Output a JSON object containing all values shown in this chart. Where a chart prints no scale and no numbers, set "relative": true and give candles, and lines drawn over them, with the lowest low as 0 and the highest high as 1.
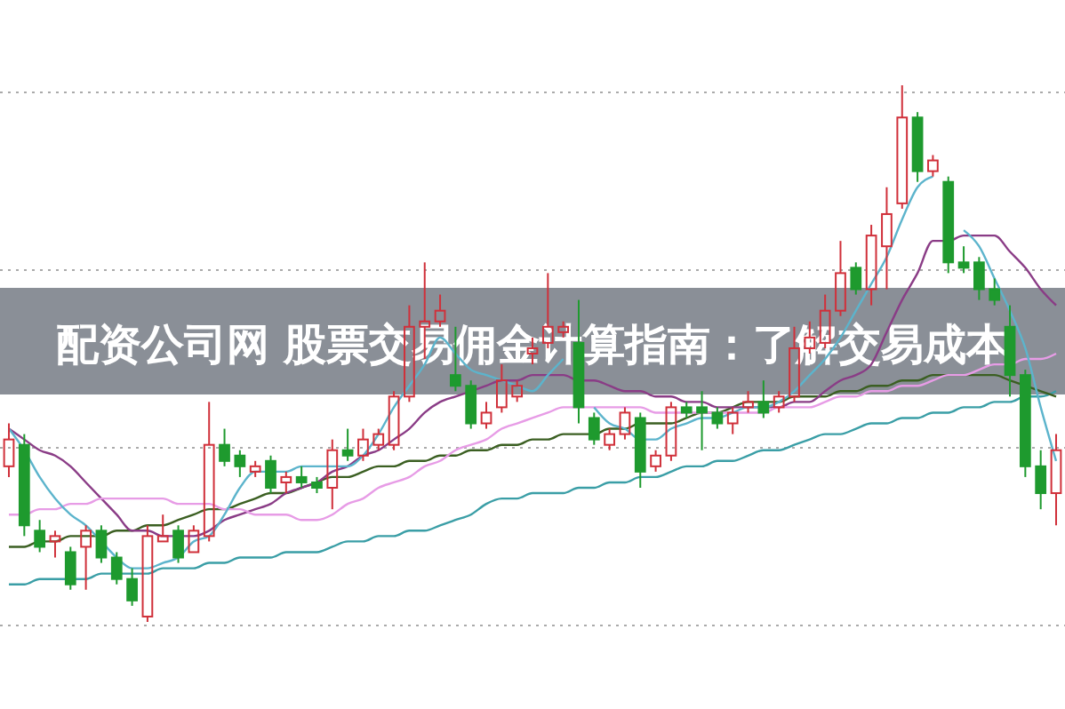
{
  "chart_data": {
    "type": "candlestick",
    "title": "配资公司网 股票交易佣金计算指南：了解交易成本",
    "relative": true,
    "grid": "y",
    "categories": [
      null,
      null,
      null,
      null,
      null,
      null,
      null,
      null,
      null,
      null,
      null,
      null,
      null,
      null,
      null,
      null,
      null,
      null,
      null,
      null,
      null,
      null,
      null,
      null,
      null,
      null,
      null,
      null,
      null,
      null,
      null,
      null,
      null,
      null,
      null,
      null,
      null,
      null,
      null,
      null,
      null,
      null,
      null,
      null,
      null,
      null,
      null,
      null,
      null,
      null,
      null,
      null,
      null,
      null,
      null,
      null,
      null,
      null,
      null,
      null,
      null,
      null,
      null,
      null,
      null,
      null,
      null,
      null,
      null
    ],
    "ohlc": [
      [
        0.29,
        0.37,
        0.27,
        0.34
      ],
      [
        0.33,
        0.35,
        0.16,
        0.18
      ],
      [
        0.17,
        0.19,
        0.13,
        0.14
      ],
      [
        0.15,
        0.17,
        0.12,
        0.16
      ],
      [
        0.13,
        0.14,
        0.06,
        0.07
      ],
      [
        0.14,
        0.18,
        0.06,
        0.17
      ],
      [
        0.17,
        0.18,
        0.11,
        0.12
      ],
      [
        0.12,
        0.13,
        0.07,
        0.08
      ],
      [
        0.08,
        0.1,
        0.03,
        0.04
      ],
      [
        0.01,
        0.18,
        0,
        0.16
      ],
      [
        0.15,
        0.2,
        0.15,
        0.16
      ],
      [
        0.17,
        0.18,
        0.11,
        0.12
      ],
      [
        0.13,
        0.18,
        0.13,
        0.17
      ],
      [
        0.16,
        0.41,
        0.15,
        0.33
      ],
      [
        0.33,
        0.36,
        0.29,
        0.3
      ],
      [
        0.31,
        0.32,
        0.27,
        0.29
      ],
      [
        0.28,
        0.3,
        0.27,
        0.29
      ],
      [
        0.3,
        0.31,
        0.24,
        0.25
      ],
      [
        0.26,
        0.28,
        0.24,
        0.27
      ],
      [
        0.27,
        0.29,
        0.25,
        0.26
      ],
      [
        0.26,
        0.27,
        0.24,
        0.25
      ],
      [
        0.25,
        0.34,
        0.21,
        0.32
      ],
      [
        0.32,
        0.36,
        0.3,
        0.31
      ],
      [
        0.31,
        0.36,
        0.3,
        0.34
      ],
      [
        0.33,
        0.36,
        0.32,
        0.35
      ],
      [
        0.33,
        0.43,
        0.32,
        0.42
      ],
      [
        0.42,
        0.59,
        0.41,
        0.55
      ],
      [
        0.55,
        0.67,
        0.49,
        0.56
      ],
      [
        0.56,
        0.61,
        0.55,
        0.58
      ],
      [
        0.46,
        0.55,
        0.43,
        0.44
      ],
      [
        0.44,
        0.45,
        0.36,
        0.37
      ],
      [
        0.37,
        0.41,
        0.36,
        0.39
      ],
      [
        0.4,
        0.48,
        0.39,
        0.45
      ],
      [
        0.42,
        0.45,
        0.41,
        0.44
      ],
      [
        0.5,
        0.53,
        0.48,
        0.51
      ],
      [
        0.52,
        0.65,
        0.51,
        0.55
      ],
      [
        0.54,
        0.56,
        0.53,
        0.55
      ],
      [
        0.52,
        0.6,
        0.37,
        0.4
      ],
      [
        0.38,
        0.39,
        0.33,
        0.34
      ],
      [
        0.33,
        0.36,
        0.32,
        0.35
      ],
      [
        0.35,
        0.4,
        0.34,
        0.39
      ],
      [
        0.38,
        0.39,
        0.25,
        0.28
      ],
      [
        0.29,
        0.32,
        0.28,
        0.31
      ],
      [
        0.31,
        0.41,
        0.3,
        0.4
      ],
      [
        0.4,
        0.41,
        0.38,
        0.39
      ],
      [
        0.4,
        0.43,
        0.32,
        0.39
      ],
      [
        0.39,
        0.4,
        0.36,
        0.37
      ],
      [
        0.37,
        0.4,
        0.35,
        0.39
      ],
      [
        0.4,
        0.43,
        0.39,
        0.41
      ],
      [
        0.41,
        0.45,
        0.38,
        0.39
      ],
      [
        0.4,
        0.43,
        0.39,
        0.42
      ],
      [
        0.42,
        0.55,
        0.41,
        0.51
      ],
      [
        0.51,
        0.56,
        0.5,
        0.53
      ],
      [
        0.52,
        0.61,
        0.51,
        0.58
      ],
      [
        0.58,
        0.71,
        0.57,
        0.65
      ],
      [
        0.66,
        0.67,
        0.61,
        0.62
      ],
      [
        0.62,
        0.74,
        0.59,
        0.72
      ],
      [
        0.7,
        0.81,
        0.62,
        0.76
      ],
      [
        0.78,
        1,
        0.77,
        0.94
      ],
      [
        0.94,
        0.95,
        0.82,
        0.84
      ],
      [
        0.84,
        0.87,
        0.83,
        0.86
      ],
      [
        0.82,
        0.83,
        0.65,
        0.67
      ],
      [
        0.67,
        0.7,
        0.65,
        0.66
      ],
      [
        0.67,
        0.68,
        0.6,
        0.62
      ],
      [
        0.62,
        0.64,
        0.59,
        0.6
      ],
      [
        0.55,
        0.59,
        0.42,
        0.46
      ],
      [
        0.46,
        0.47,
        0.27,
        0.29
      ],
      [
        0.29,
        0.32,
        0.21,
        0.24
      ],
      [
        0.24,
        0.35,
        0.18,
        0.32
      ]
    ],
    "colors": [
      "#d0303a",
      "#1e9a2e",
      "#1e9a2e",
      "#d0303a",
      "#1e9a2e",
      "#d0303a",
      "#1e9a2e",
      "#1e9a2e",
      "#1e9a2e",
      "#d0303a",
      "#d0303a",
      "#1e9a2e",
      "#d0303a",
      "#d0303a",
      "#1e9a2e",
      "#1e9a2e",
      "#d0303a",
      "#1e9a2e",
      "#d0303a",
      "#1e9a2e",
      "#1e9a2e",
      "#d0303a",
      "#1e9a2e",
      "#d0303a",
      "#d0303a",
      "#d0303a",
      "#d0303a",
      "#d0303a",
      "#d0303a",
      "#1e9a2e",
      "#1e9a2e",
      "#d0303a",
      "#d0303a",
      "#d0303a",
      "#d0303a",
      "#d0303a",
      "#d0303a",
      "#1e9a2e",
      "#1e9a2e",
      "#d0303a",
      "#d0303a",
      "#1e9a2e",
      "#d0303a",
      "#d0303a",
      "#1e9a2e",
      "#1e9a2e",
      "#1e9a2e",
      "#d0303a",
      "#d0303a",
      "#1e9a2e",
      "#d0303a",
      "#d0303a",
      "#d0303a",
      "#d0303a",
      "#d0303a",
      "#1e9a2e",
      "#d0303a",
      "#d0303a",
      "#d0303a",
      "#1e9a2e",
      "#d0303a",
      "#1e9a2e",
      "#1e9a2e",
      "#1e9a2e",
      "#1e9a2e",
      "#1e9a2e",
      "#1e9a2e",
      "#1e9a2e",
      "#d0303a"
    ],
    "series": [
      {
        "type": "line",
        "color": "#3a9ea6",
        "values": [
          0.07,
          0.07,
          0.08,
          0.08,
          0.08,
          0.08,
          0.09,
          0.09,
          0.09,
          0.09,
          0.1,
          0.1,
          0.1,
          0.11,
          0.11,
          0.12,
          0.12,
          0.12,
          0.13,
          0.13,
          0.13,
          0.14,
          0.15,
          0.15,
          0.16,
          0.16,
          0.17,
          0.17,
          0.18,
          0.19,
          0.2,
          0.22,
          0.23,
          0.23,
          0.24,
          0.24,
          0.24,
          0.25,
          0.25,
          0.26,
          0.26,
          0.27,
          0.27,
          0.28,
          0.29,
          0.29,
          0.3,
          0.3,
          0.31,
          0.32,
          0.32,
          0.33,
          0.34,
          0.35,
          0.35,
          0.36,
          0.37,
          0.37,
          0.38,
          0.38,
          0.39,
          0.39,
          0.4,
          0.4,
          0.41,
          0.41,
          0.42,
          0.42,
          0.43
        ]
      },
      {
        "type": "line",
        "color": "#3b5f22",
        "values": [
          0.14,
          0.14,
          0.15,
          0.15,
          0.16,
          0.16,
          0.16,
          0.17,
          0.17,
          0.18,
          0.18,
          0.19,
          0.2,
          0.21,
          0.21,
          0.22,
          0.23,
          0.24,
          0.24,
          0.25,
          0.26,
          0.27,
          0.27,
          0.28,
          0.29,
          0.29,
          0.3,
          0.3,
          0.31,
          0.31,
          0.32,
          0.32,
          0.33,
          0.33,
          0.34,
          0.34,
          0.35,
          0.35,
          0.35,
          0.36,
          0.36,
          0.37,
          0.37,
          0.37,
          0.38,
          0.39,
          0.39,
          0.4,
          0.41,
          0.41,
          0.41,
          0.42,
          0.42,
          0.42,
          0.43,
          0.43,
          0.44,
          0.44,
          0.45,
          0.45,
          0.46,
          0.46,
          0.46,
          0.46,
          0.46,
          0.45,
          0.44,
          0.43,
          0.42
        ]
      },
      {
        "type": "line",
        "color": "#8a3c86",
        "values": [
          0.36,
          0.34,
          0.32,
          0.31,
          0.29,
          0.26,
          0.23,
          0.2,
          0.17,
          0.17,
          0.16,
          0.16,
          0.16,
          0.17,
          0.19,
          0.2,
          0.21,
          0.22,
          0.24,
          0.25,
          0.26,
          0.28,
          0.29,
          0.31,
          0.32,
          0.34,
          0.36,
          0.39,
          0.41,
          0.42,
          0.43,
          0.44,
          0.45,
          0.45,
          0.46,
          0.46,
          0.46,
          0.45,
          0.45,
          0.44,
          0.43,
          0.43,
          0.42,
          0.42,
          0.41,
          0.41,
          0.4,
          0.4,
          0.4,
          0.4,
          0.4,
          0.41,
          0.41,
          0.43,
          0.45,
          0.46,
          0.48,
          0.54,
          0.6,
          0.65,
          0.71,
          0.71,
          0.72,
          0.72,
          0.72,
          0.69,
          0.66,
          0.62,
          0.59
        ]
      },
      {
        "type": "line",
        "color": "#e79ce6",
        "values": [
          0.2,
          0.2,
          0.21,
          0.21,
          0.22,
          0.22,
          0.23,
          0.23,
          0.23,
          0.23,
          0.23,
          0.22,
          0.22,
          0.22,
          0.21,
          0.21,
          0.2,
          0.2,
          0.2,
          0.19,
          0.19,
          0.2,
          0.22,
          0.23,
          0.25,
          0.26,
          0.27,
          0.29,
          0.3,
          0.32,
          0.33,
          0.34,
          0.36,
          0.37,
          0.38,
          0.39,
          0.4,
          0.4,
          0.4,
          0.4,
          0.4,
          0.4,
          0.39,
          0.39,
          0.39,
          0.39,
          0.39,
          0.39,
          0.39,
          0.39,
          0.4,
          0.4,
          0.4,
          0.41,
          0.42,
          0.42,
          0.43,
          0.43,
          0.44,
          0.44,
          0.45,
          0.46,
          0.46,
          0.47,
          0.48,
          0.48,
          0.49,
          0.49,
          0.5
        ]
      },
      {
        "type": "line",
        "color": "#5cb4cc",
        "values": [
          0.36,
          0.32,
          0.27,
          0.23,
          0.2,
          0.18,
          0.15,
          0.12,
          0.1,
          0.1,
          0.11,
          0.12,
          0.15,
          0.16,
          0.2,
          0.25,
          0.28,
          0.28,
          0.28,
          0.29,
          0.29,
          0.29,
          0.29,
          0.31,
          0.35,
          0.4,
          0.44,
          0.48,
          0.53,
          0.5,
          0.47,
          0.46,
          0.45,
          0.44,
          0.43,
          0.46,
          0.49,
          null,
          0.4,
          0.37,
          0.36,
          0.34,
          0.34,
          0.36,
          0.37,
          0.38,
          0.38,
          0.39,
          0.4,
          0.4,
          0.41,
          0.43,
          0.46,
          0.49,
          0.53,
          0.58,
          0.63,
          0.68,
          0.75,
          0.81,
          0.83,
          null,
          0.73,
          0.7,
          0.64,
          0.58,
          0.51,
          0.4,
          0.3
        ]
      }
    ]
  }
}
